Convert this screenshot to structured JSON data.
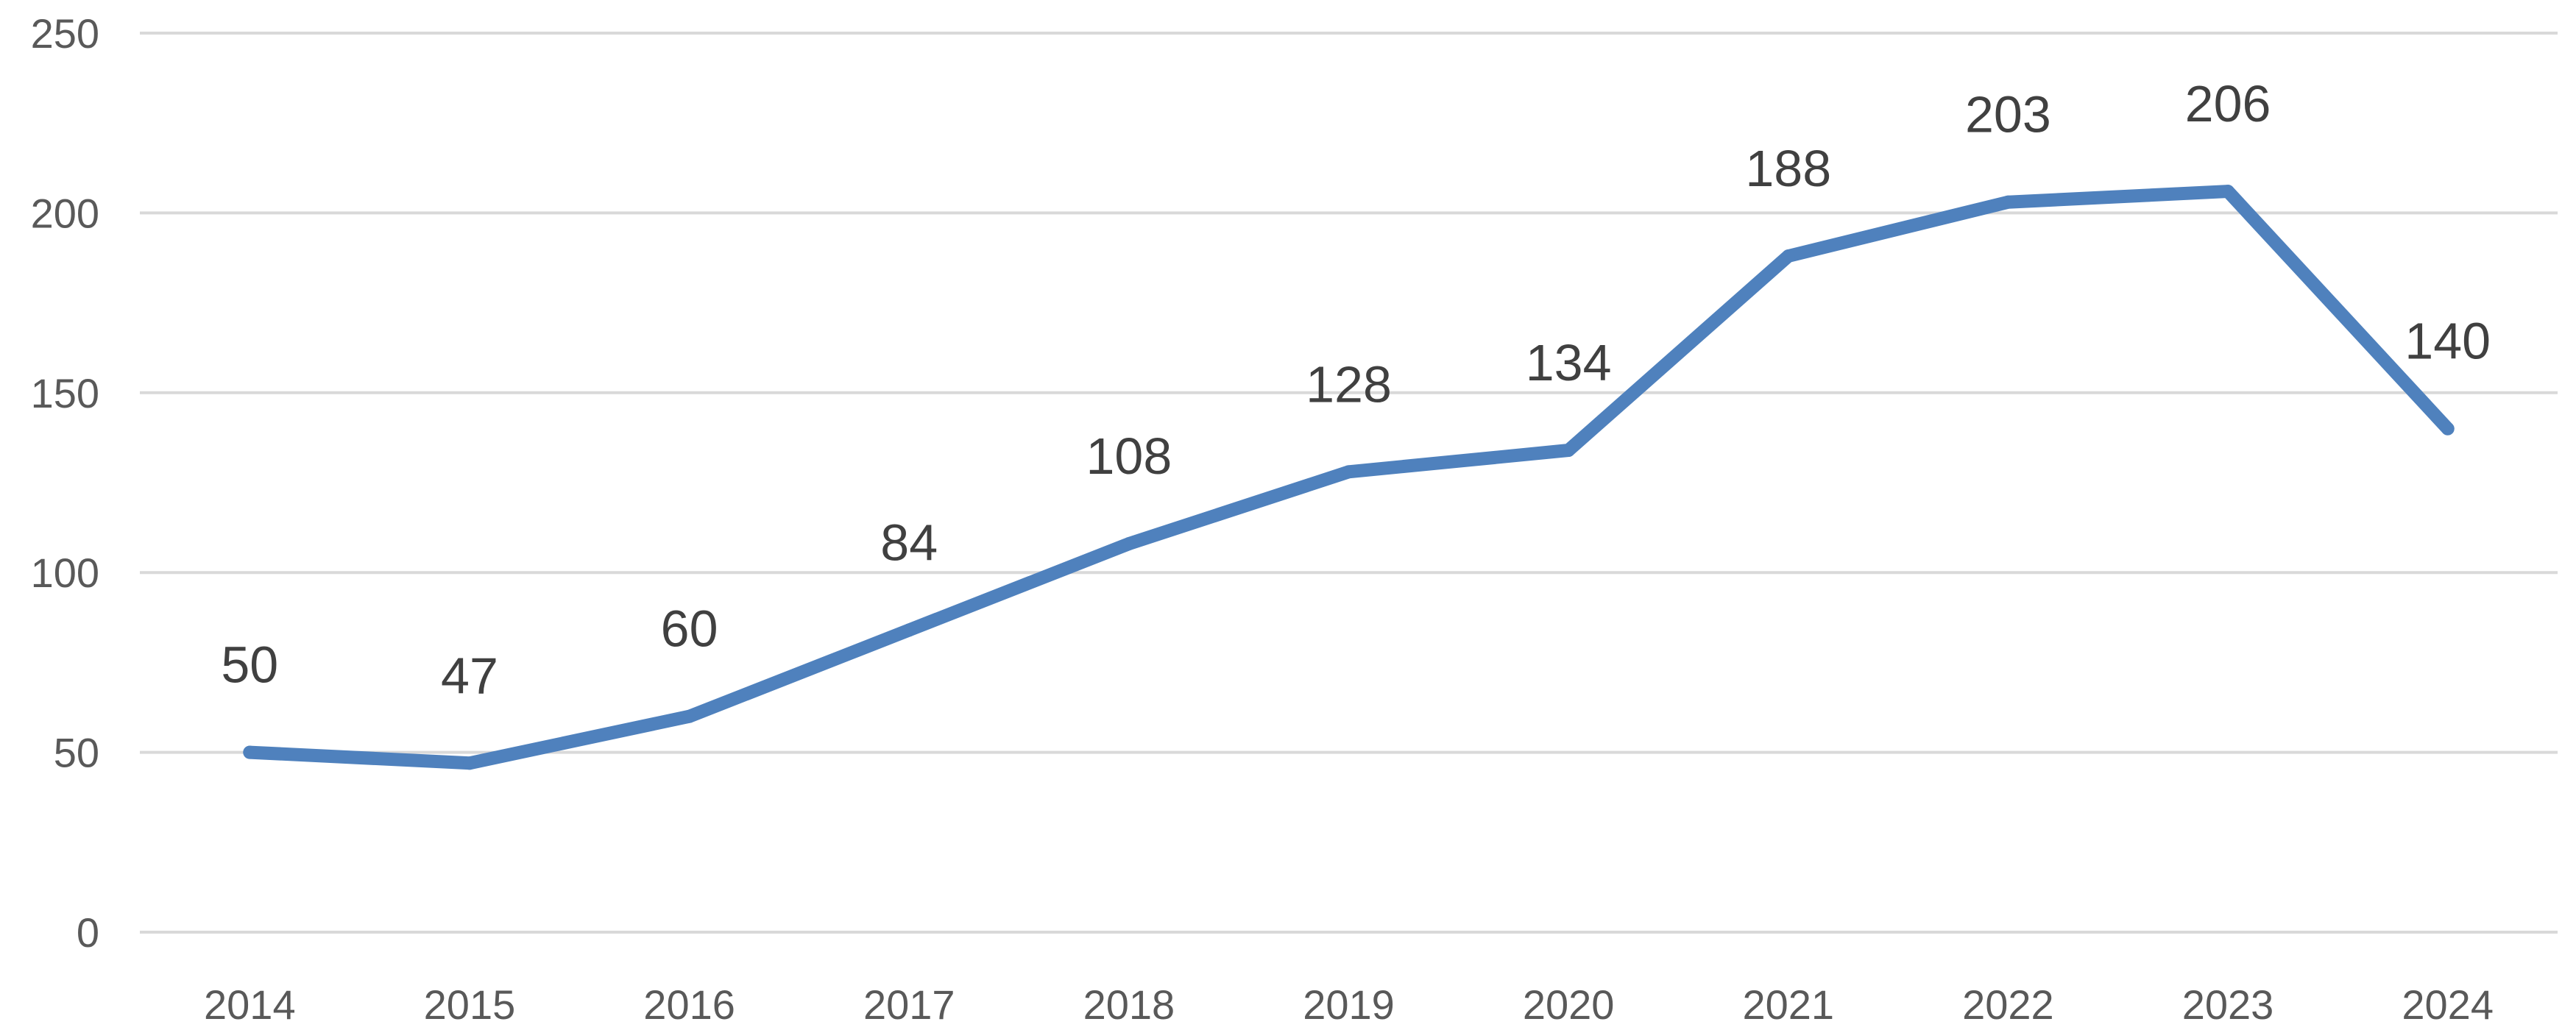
{
  "chart_data": {
    "type": "line",
    "title": "",
    "xlabel": "",
    "ylabel": "",
    "categories": [
      "2014",
      "2015",
      "2016",
      "2017",
      "2018",
      "2019",
      "2020",
      "2021",
      "2022",
      "2023",
      "2024"
    ],
    "series": [
      {
        "values": [
          50,
          47,
          60,
          84,
          108,
          128,
          134,
          188,
          203,
          206,
          140
        ],
        "color": "#4f81bd"
      }
    ],
    "ylim": [
      0,
      250
    ],
    "yticks": [
      "0",
      "50",
      "100",
      "150",
      "200",
      "250"
    ],
    "data_labels": [
      "50",
      "47",
      "60",
      "84",
      "108",
      "128",
      "134",
      "188",
      "203",
      "206",
      "140"
    ],
    "grid": true,
    "legend": "none"
  }
}
